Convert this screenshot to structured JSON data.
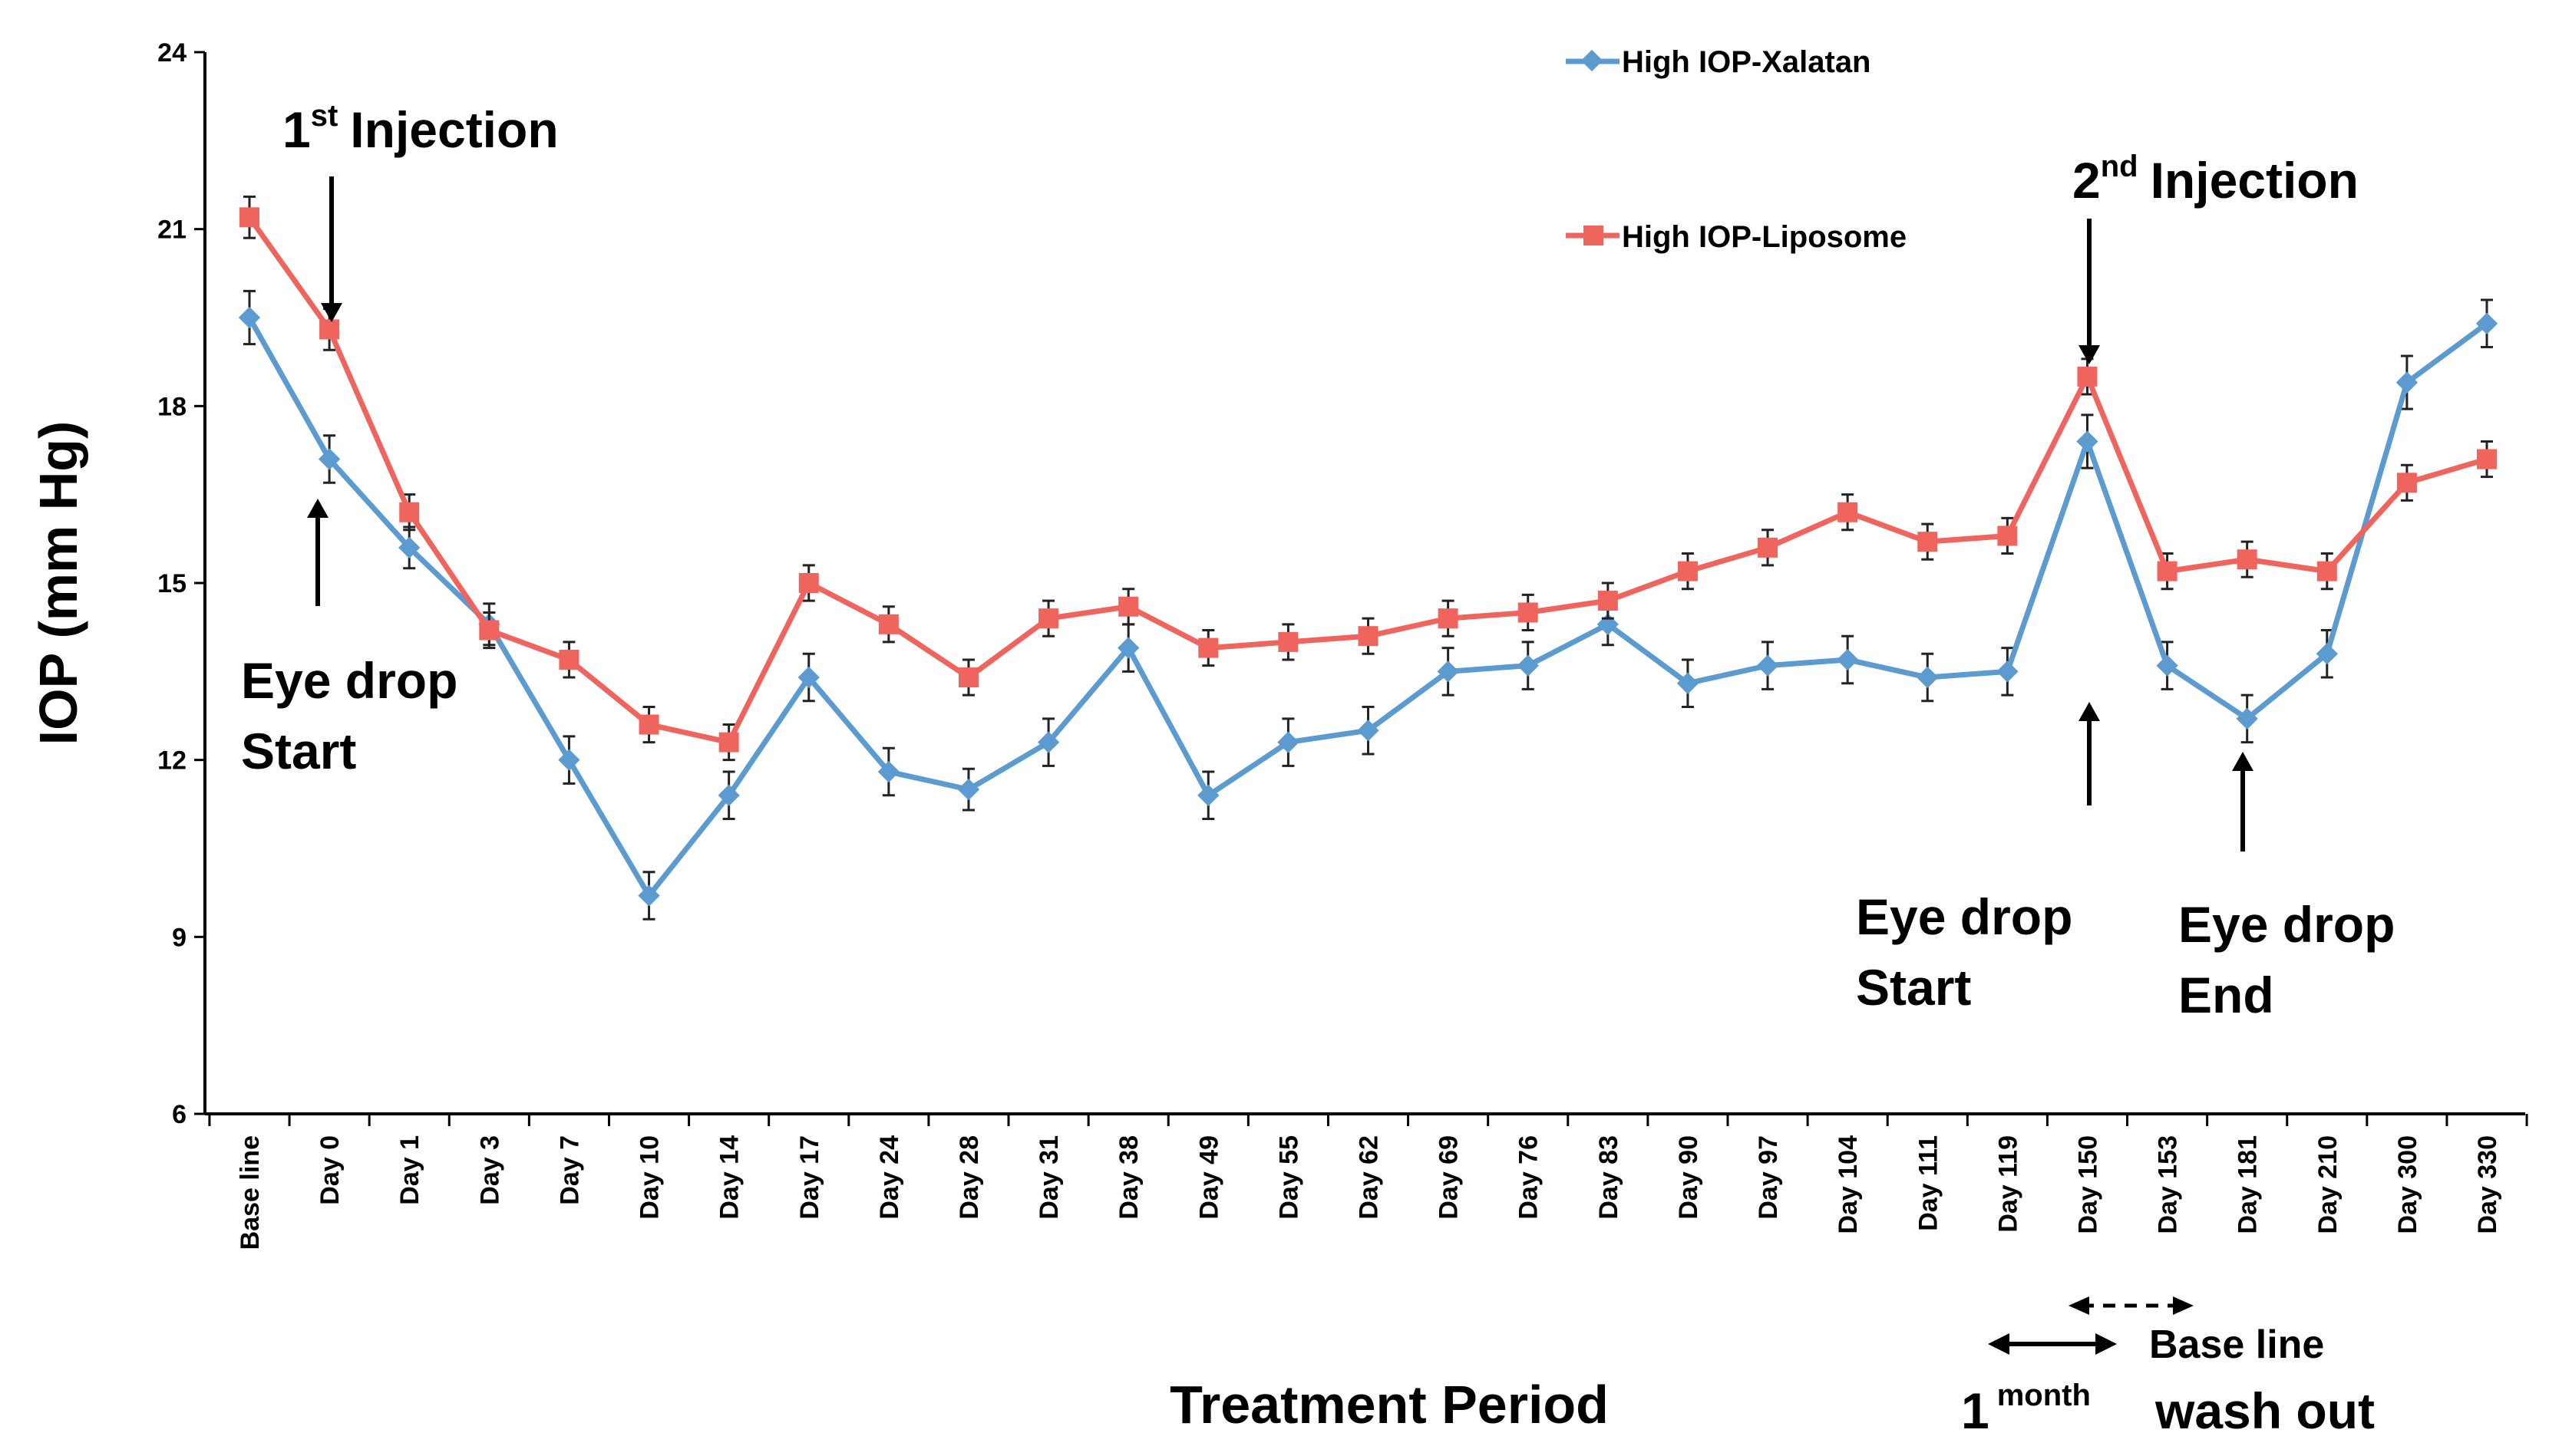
{
  "chart_data": {
    "type": "line",
    "categories": [
      "Base line",
      "Day 0",
      "Day 1",
      "Day 3",
      "Day 7",
      "Day 10",
      "Day 14",
      "Day 17",
      "Day 24",
      "Day 28",
      "Day 31",
      "Day 38",
      "Day 49",
      "Day 55",
      "Day 62",
      "Day 69",
      "Day 76",
      "Day 83",
      "Day 90",
      "Day 97",
      "Day 104",
      "Day 111",
      "Day 119",
      "Day 150",
      "Day 153",
      "Day 181",
      "Day 210",
      "Day 300",
      "Day 330"
    ],
    "series": [
      {
        "name": "High IOP-Xalatan",
        "color": "#5b9bd0",
        "marker": "diamond",
        "values": [
          19.5,
          17.1,
          15.6,
          14.3,
          12.0,
          9.7,
          11.4,
          13.4,
          11.8,
          11.5,
          12.3,
          13.9,
          11.4,
          12.3,
          12.5,
          13.5,
          13.6,
          14.3,
          13.3,
          13.6,
          13.7,
          13.4,
          13.5,
          17.4,
          13.6,
          12.7,
          13.8,
          18.4,
          19.4
        ],
        "errors": [
          0.45,
          0.4,
          0.35,
          0.35,
          0.4,
          0.4,
          0.4,
          0.4,
          0.4,
          0.35,
          0.4,
          0.4,
          0.4,
          0.4,
          0.4,
          0.4,
          0.4,
          0.35,
          0.4,
          0.4,
          0.4,
          0.4,
          0.4,
          0.45,
          0.4,
          0.4,
          0.4,
          0.45,
          0.4
        ]
      },
      {
        "name": "High IOP-Liposome",
        "color": "#f0645e",
        "marker": "square",
        "values": [
          21.2,
          19.3,
          16.2,
          14.2,
          13.7,
          12.6,
          12.3,
          15.0,
          14.3,
          13.4,
          14.4,
          14.6,
          13.9,
          14.0,
          14.1,
          14.4,
          14.5,
          14.7,
          15.2,
          15.6,
          16.2,
          15.7,
          15.8,
          18.5,
          15.2,
          15.4,
          15.2,
          16.7,
          17.1
        ],
        "errors": [
          0.35,
          0.35,
          0.3,
          0.3,
          0.3,
          0.3,
          0.3,
          0.3,
          0.3,
          0.3,
          0.3,
          0.3,
          0.3,
          0.3,
          0.3,
          0.3,
          0.3,
          0.3,
          0.3,
          0.3,
          0.3,
          0.3,
          0.3,
          0.3,
          0.3,
          0.3,
          0.3,
          0.3,
          0.3
        ]
      }
    ],
    "xlabel": "Treatment Period",
    "ylabel": "IOP (mm Hg)",
    "ylim": [
      6,
      24
    ],
    "yticks": [
      6,
      9,
      12,
      15,
      18,
      21,
      24
    ],
    "legend": "top-right",
    "annotations": {
      "first_injection": {
        "number": "1",
        "sup": "st",
        "text": "Injection"
      },
      "eye_drop_start_1": {
        "line1": "Eye drop",
        "line2": "Start"
      },
      "second_injection": {
        "number": "2",
        "sup": "nd",
        "text": "Injection"
      },
      "eye_drop_start_2": {
        "line1": "Eye drop",
        "line2": "Start"
      },
      "eye_drop_end": {
        "line1": "Eye drop",
        "line2": "End"
      },
      "base_line": "Base line",
      "one_month": {
        "number": "1",
        "sup": "month"
      },
      "wash_out": "wash out"
    }
  }
}
